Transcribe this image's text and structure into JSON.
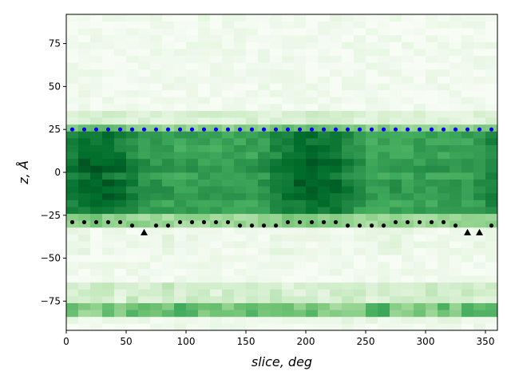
{
  "chart_data": {
    "type": "heatmap",
    "colormap": "Greens",
    "xlabel": "slice, deg",
    "ylabel": "z, Å",
    "xlim": [
      0,
      360
    ],
    "ylim": [
      -92,
      92
    ],
    "x_ticks": [
      0,
      50,
      100,
      150,
      200,
      250,
      300,
      350
    ],
    "y_ticks": [
      -75,
      -50,
      -25,
      0,
      25,
      50,
      75
    ],
    "x_tick_labels": [
      "0",
      "50",
      "100",
      "150",
      "200",
      "250",
      "300",
      "350"
    ],
    "y_tick_labels": [
      "−75",
      "−50",
      "−25",
      "0",
      "25",
      "50",
      "75"
    ],
    "heatmap_grid": {
      "x_bin_width": 10,
      "z_bin_height": 4,
      "x_start": 0,
      "z_start": -92,
      "note_density_scale": [
        0,
        1
      ]
    },
    "upper_boundary_points": {
      "color": "#0000ff",
      "marker": "circle",
      "z": 25,
      "x": [
        5,
        15,
        25,
        35,
        45,
        55,
        65,
        75,
        85,
        95,
        105,
        115,
        125,
        135,
        145,
        155,
        165,
        175,
        185,
        195,
        205,
        215,
        225,
        235,
        245,
        255,
        265,
        275,
        285,
        295,
        305,
        315,
        325,
        335,
        345,
        355
      ]
    },
    "lower_boundary_points": {
      "color": "#000000",
      "circles": [
        {
          "x": 5,
          "z": -29
        },
        {
          "x": 15,
          "z": -29
        },
        {
          "x": 25,
          "z": -29
        },
        {
          "x": 35,
          "z": -29
        },
        {
          "x": 45,
          "z": -29
        },
        {
          "x": 55,
          "z": -31
        },
        {
          "x": 75,
          "z": -31
        },
        {
          "x": 85,
          "z": -31
        },
        {
          "x": 95,
          "z": -29
        },
        {
          "x": 105,
          "z": -29
        },
        {
          "x": 115,
          "z": -29
        },
        {
          "x": 125,
          "z": -29
        },
        {
          "x": 135,
          "z": -29
        },
        {
          "x": 145,
          "z": -31
        },
        {
          "x": 155,
          "z": -31
        },
        {
          "x": 165,
          "z": -31
        },
        {
          "x": 175,
          "z": -31
        },
        {
          "x": 185,
          "z": -29
        },
        {
          "x": 195,
          "z": -29
        },
        {
          "x": 205,
          "z": -29
        },
        {
          "x": 215,
          "z": -29
        },
        {
          "x": 225,
          "z": -29
        },
        {
          "x": 235,
          "z": -31
        },
        {
          "x": 245,
          "z": -31
        },
        {
          "x": 255,
          "z": -31
        },
        {
          "x": 265,
          "z": -31
        },
        {
          "x": 275,
          "z": -29
        },
        {
          "x": 285,
          "z": -29
        },
        {
          "x": 295,
          "z": -29
        },
        {
          "x": 305,
          "z": -29
        },
        {
          "x": 315,
          "z": -29
        },
        {
          "x": 325,
          "z": -31
        },
        {
          "x": 355,
          "z": -31
        }
      ],
      "triangles": [
        {
          "x": 65,
          "z": -35
        },
        {
          "x": 335,
          "z": -35
        },
        {
          "x": 345,
          "z": -35
        }
      ]
    }
  }
}
